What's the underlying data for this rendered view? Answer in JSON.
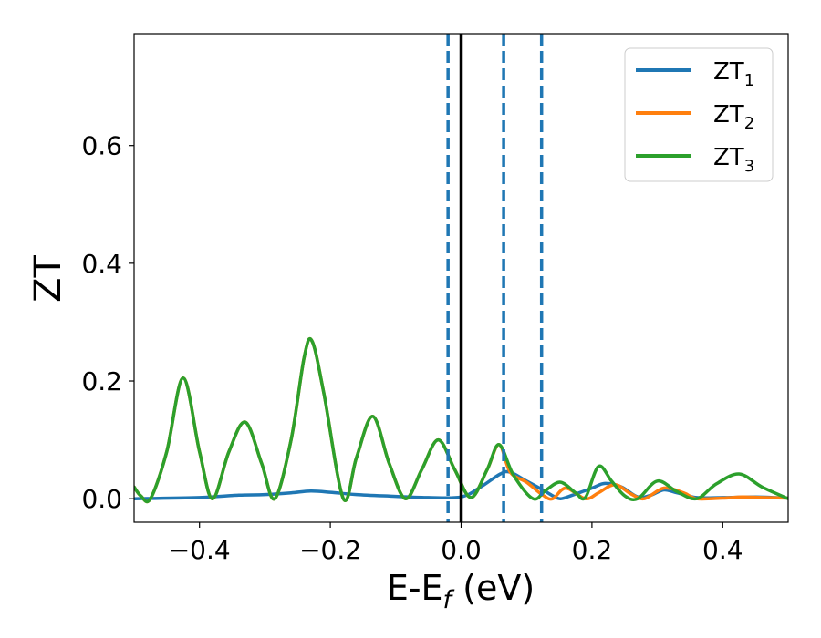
{
  "chart_data": {
    "type": "line",
    "xlabel_main": "E-E",
    "xlabel_sub": "f",
    "xlabel_unit": " (eV)",
    "ylabel": "ZT",
    "xlim": [
      -0.5,
      0.5
    ],
    "ylim": [
      -0.04,
      0.79
    ],
    "xticks": [
      -0.4,
      -0.2,
      0.0,
      0.2,
      0.4
    ],
    "xtick_labels": [
      "−0.4",
      "−0.2",
      "0.0",
      "0.2",
      "0.4"
    ],
    "yticks": [
      0.0,
      0.2,
      0.4,
      0.6
    ],
    "ytick_labels": [
      "0.0",
      "0.2",
      "0.4",
      "0.6"
    ],
    "grid": false,
    "legend_position": "top-right",
    "vlines": [
      {
        "x": 0.0,
        "style": "solid",
        "color": "#000000"
      },
      {
        "x": -0.02,
        "style": "dashed",
        "color": "#1f77b4"
      },
      {
        "x": 0.065,
        "style": "dashed",
        "color": "#1f77b4"
      },
      {
        "x": 0.123,
        "style": "dashed",
        "color": "#1f77b4"
      }
    ],
    "series": [
      {
        "name": "ZT",
        "sub": "1",
        "color": "#1f77b4",
        "points": [
          [
            -0.5,
            0.0
          ],
          [
            -0.4,
            0.002
          ],
          [
            -0.34,
            0.006
          ],
          [
            -0.3,
            0.007
          ],
          [
            -0.26,
            0.01
          ],
          [
            -0.23,
            0.013
          ],
          [
            -0.2,
            0.011
          ],
          [
            -0.16,
            0.007
          ],
          [
            -0.1,
            0.004
          ],
          [
            -0.05,
            0.002
          ],
          [
            0.0,
            0.003
          ],
          [
            0.03,
            0.02
          ],
          [
            0.06,
            0.042
          ],
          [
            0.075,
            0.045
          ],
          [
            0.1,
            0.03
          ],
          [
            0.125,
            0.015
          ],
          [
            0.14,
            0.005
          ],
          [
            0.152,
            0.0
          ],
          [
            0.17,
            0.006
          ],
          [
            0.2,
            0.018
          ],
          [
            0.22,
            0.026
          ],
          [
            0.245,
            0.02
          ],
          [
            0.27,
            0.003
          ],
          [
            0.29,
            0.006
          ],
          [
            0.31,
            0.015
          ],
          [
            0.33,
            0.01
          ],
          [
            0.36,
            0.002
          ],
          [
            0.4,
            0.002
          ],
          [
            0.45,
            0.003
          ],
          [
            0.5,
            0.001
          ]
        ]
      },
      {
        "name": "ZT",
        "sub": "2",
        "color": "#ff7f0e",
        "points": [
          [
            -0.5,
            0.02
          ],
          [
            -0.49,
            0.005
          ],
          [
            -0.475,
            0.0
          ],
          [
            -0.45,
            0.08
          ],
          [
            -0.425,
            0.205
          ],
          [
            -0.4,
            0.08
          ],
          [
            -0.38,
            0.0
          ],
          [
            -0.355,
            0.08
          ],
          [
            -0.33,
            0.13
          ],
          [
            -0.305,
            0.06
          ],
          [
            -0.285,
            0.0
          ],
          [
            -0.26,
            0.1
          ],
          [
            -0.24,
            0.24
          ],
          [
            -0.228,
            0.268
          ],
          [
            -0.21,
            0.18
          ],
          [
            -0.18,
            0.0
          ],
          [
            -0.16,
            0.07
          ],
          [
            -0.135,
            0.14
          ],
          [
            -0.11,
            0.06
          ],
          [
            -0.085,
            0.0
          ],
          [
            -0.06,
            0.05
          ],
          [
            -0.035,
            0.1
          ],
          [
            -0.01,
            0.05
          ],
          [
            0.015,
            0.002
          ],
          [
            0.04,
            0.05
          ],
          [
            0.058,
            0.092
          ],
          [
            0.075,
            0.045
          ],
          [
            0.1,
            0.028
          ],
          [
            0.125,
            0.006
          ],
          [
            0.14,
            0.0
          ],
          [
            0.16,
            0.018
          ],
          [
            0.19,
            0.0
          ],
          [
            0.21,
            0.01
          ],
          [
            0.235,
            0.024
          ],
          [
            0.26,
            0.008
          ],
          [
            0.28,
            0.0
          ],
          [
            0.31,
            0.018
          ],
          [
            0.34,
            0.01
          ],
          [
            0.36,
            0.0
          ],
          [
            0.4,
            0.001
          ],
          [
            0.43,
            0.003
          ],
          [
            0.46,
            0.002
          ],
          [
            0.5,
            0.001
          ]
        ]
      },
      {
        "name": "ZT",
        "sub": "3",
        "color": "#2ca02c",
        "points": [
          [
            -0.5,
            0.02
          ],
          [
            -0.49,
            0.005
          ],
          [
            -0.475,
            0.0
          ],
          [
            -0.45,
            0.08
          ],
          [
            -0.425,
            0.205
          ],
          [
            -0.4,
            0.08
          ],
          [
            -0.38,
            0.0
          ],
          [
            -0.355,
            0.08
          ],
          [
            -0.33,
            0.13
          ],
          [
            -0.305,
            0.06
          ],
          [
            -0.285,
            0.0
          ],
          [
            -0.26,
            0.1
          ],
          [
            -0.24,
            0.24
          ],
          [
            -0.228,
            0.268
          ],
          [
            -0.21,
            0.18
          ],
          [
            -0.18,
            0.0
          ],
          [
            -0.16,
            0.07
          ],
          [
            -0.135,
            0.14
          ],
          [
            -0.11,
            0.06
          ],
          [
            -0.085,
            0.0
          ],
          [
            -0.06,
            0.05
          ],
          [
            -0.035,
            0.1
          ],
          [
            -0.01,
            0.05
          ],
          [
            0.015,
            0.002
          ],
          [
            0.04,
            0.05
          ],
          [
            0.058,
            0.092
          ],
          [
            0.08,
            0.04
          ],
          [
            0.11,
            0.0
          ],
          [
            0.13,
            0.015
          ],
          [
            0.152,
            0.028
          ],
          [
            0.175,
            0.01
          ],
          [
            0.19,
            0.002
          ],
          [
            0.21,
            0.055
          ],
          [
            0.23,
            0.03
          ],
          [
            0.25,
            0.005
          ],
          [
            0.27,
            0.0
          ],
          [
            0.3,
            0.03
          ],
          [
            0.33,
            0.012
          ],
          [
            0.36,
            0.0
          ],
          [
            0.39,
            0.025
          ],
          [
            0.425,
            0.042
          ],
          [
            0.46,
            0.02
          ],
          [
            0.5,
            0.0
          ]
        ]
      }
    ]
  }
}
